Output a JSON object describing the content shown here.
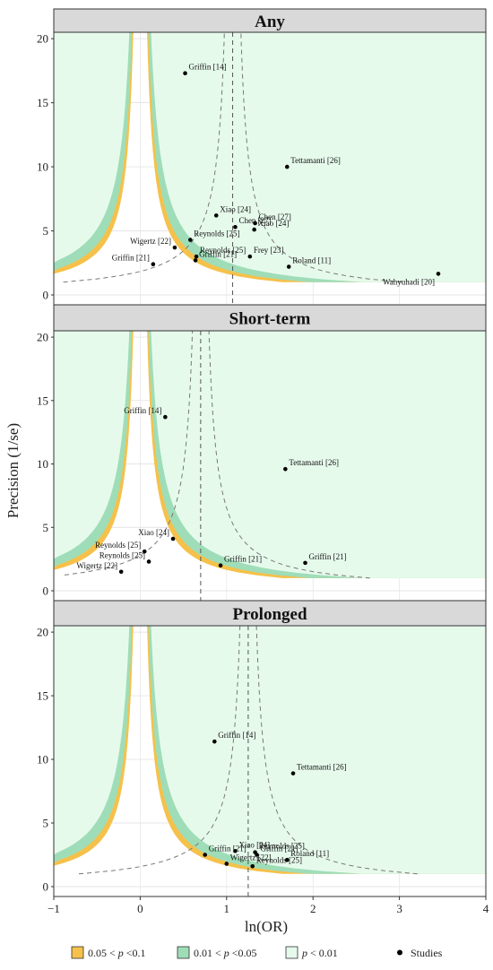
{
  "chart_data": {
    "type": "scatter",
    "subtype": "contour-enhanced funnel plot",
    "xlabel": "ln(OR)",
    "ylabel": "Precision (1/se)",
    "xlim": [
      -1,
      4
    ],
    "ylim": [
      0,
      20.5
    ],
    "x_ticks": [
      "−1",
      "0",
      "1",
      "2",
      "3",
      "4"
    ],
    "y_ticks": [
      "0",
      "5",
      "10",
      "15",
      "20"
    ],
    "grid": true,
    "legend_position": "bottom",
    "legend": [
      {
        "label_pre": "0.05 < ",
        "label_p": "p",
        "label_post": " <0.1",
        "color": "#F5C14B",
        "kind": "swatch"
      },
      {
        "label_pre": "0.01 < ",
        "label_p": "p",
        "label_post": " <0.05",
        "color": "#9FDDB8",
        "kind": "swatch"
      },
      {
        "label_pre": "",
        "label_p": "p",
        "label_post": " < 0.01",
        "color": "#E6FAEC",
        "kind": "swatch"
      },
      {
        "label_pre": "Studies",
        "label_p": "",
        "label_post": "",
        "color": "#000000",
        "kind": "point"
      }
    ],
    "panels": [
      {
        "title": "Any",
        "summary_estimate": 1.07,
        "points": [
          {
            "x": 0.52,
            "y": 17.3,
            "label": "Griffin [14]"
          },
          {
            "x": 1.7,
            "y": 10.0,
            "label": "Tettamanti [26]"
          },
          {
            "x": 0.88,
            "y": 6.2,
            "label": "Xiao [24]"
          },
          {
            "x": 1.1,
            "y": 5.3,
            "label": "Chen [27]"
          },
          {
            "x": 1.33,
            "y": 5.6,
            "label": "Chen [27]"
          },
          {
            "x": 1.32,
            "y": 5.1,
            "label": "Xiao [24]"
          },
          {
            "x": 0.58,
            "y": 4.3,
            "label": "Reynolds [25]"
          },
          {
            "x": 0.4,
            "y": 3.7,
            "label": "Wigertz [22]"
          },
          {
            "x": 0.65,
            "y": 3.0,
            "label": "Reynolds [25]"
          },
          {
            "x": 1.27,
            "y": 3.0,
            "label": "Frey [23]"
          },
          {
            "x": 0.15,
            "y": 2.4,
            "label": "Griffin [21]"
          },
          {
            "x": 0.64,
            "y": 2.7,
            "label": "Griffin [21]"
          },
          {
            "x": 1.72,
            "y": 2.2,
            "label": "Roland [11]"
          },
          {
            "x": 3.45,
            "y": 1.65,
            "label": "Wahyuhadi [20]"
          }
        ]
      },
      {
        "title": "Short-term",
        "summary_estimate": 0.7,
        "points": [
          {
            "x": 0.29,
            "y": 13.7,
            "label": "Griffin [14]"
          },
          {
            "x": 1.68,
            "y": 9.6,
            "label": "Tettamanti [26]"
          },
          {
            "x": 0.38,
            "y": 4.1,
            "label": "Xiao [24]"
          },
          {
            "x": 0.05,
            "y": 3.1,
            "label": "Reynolds [25]"
          },
          {
            "x": 0.1,
            "y": 2.3,
            "label": "Reynolds [25]"
          },
          {
            "x": -0.22,
            "y": 1.5,
            "label": "Wigertz [22]"
          },
          {
            "x": 0.93,
            "y": 2.0,
            "label": "Griffin [21]"
          },
          {
            "x": 1.91,
            "y": 2.2,
            "label": "Griffin [21]"
          }
        ]
      },
      {
        "title": "Prolonged",
        "summary_estimate": 1.25,
        "points": [
          {
            "x": 0.86,
            "y": 11.4,
            "label": "Griffin [14]"
          },
          {
            "x": 1.77,
            "y": 8.9,
            "label": "Tettamanti [26]"
          },
          {
            "x": 1.1,
            "y": 2.8,
            "label": "Xiao [24]"
          },
          {
            "x": 1.33,
            "y": 2.7,
            "label": "Reynolds [25]"
          },
          {
            "x": 1.35,
            "y": 2.5,
            "label": "Griffin [21]"
          },
          {
            "x": 0.75,
            "y": 2.5,
            "label": "Griffin [21]"
          },
          {
            "x": 1.7,
            "y": 2.1,
            "label": "Roland [11]"
          },
          {
            "x": 1.0,
            "y": 1.8,
            "label": "Wigertz [22]"
          },
          {
            "x": 1.3,
            "y": 1.6,
            "label": "Reynolds [25]"
          }
        ]
      }
    ]
  }
}
